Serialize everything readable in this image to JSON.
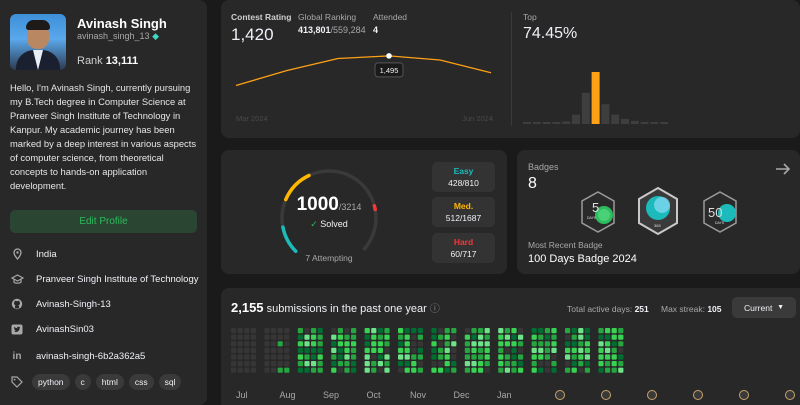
{
  "profile": {
    "name": "Avinash Singh",
    "username": "avinash_singh_13",
    "rank_label": "Rank",
    "rank_value": "13,111",
    "bio": "Hello, I'm Avinash Singh, currently pursuing my B.Tech degree in Computer Science at Pranveer Singh Institute of Technology in Kanpur. My academic journey has been marked by a deep interest in various aspects of computer science, from theoretical concepts to hands-on application development.",
    "edit_label": "Edit Profile",
    "location": "India",
    "school": "Pranveer Singh Institute of Technology",
    "github": "Avinash-Singh-13",
    "twitter": "AvinashSin03",
    "linkedin": "avinash-singh-6b2a362a5",
    "skills": [
      "python",
      "c",
      "html",
      "css",
      "sql"
    ],
    "icons": [
      "location-icon",
      "school-icon",
      "github-icon",
      "twitter-icon",
      "linkedin-icon",
      "tag-icon"
    ]
  },
  "contest": {
    "rating_label": "Contest Rating",
    "rating_value": "1,420",
    "global_label": "Global Ranking",
    "global_value": "413,801",
    "global_total": "/559,284",
    "attended_label": "Attended",
    "attended_value": "4",
    "tooltip_value": "1,495",
    "x_start": "Mar 2024",
    "x_end": "Jun 2024",
    "top_label": "Top",
    "top_value": "74.45%",
    "rating_points": [
      1100,
      1300,
      1460,
      1495,
      1440,
      1270
    ],
    "histogram": [
      2,
      2,
      3,
      3,
      5,
      18,
      60,
      100,
      38,
      18,
      10,
      6,
      4,
      3,
      2
    ],
    "histogram_highlight": 7,
    "accent": "#ffa116"
  },
  "solved": {
    "solved_value": "1000",
    "solved_total": "/3214",
    "solved_label": "Solved",
    "attempting_label": "7 Attempting",
    "easy_label": "Easy",
    "easy_value": "428/810",
    "easy_fraction": 0.528,
    "medium_label": "Med.",
    "medium_value": "512/1687",
    "medium_fraction": 0.303,
    "hard_label": "Hard",
    "hard_value": "60/717",
    "hard_fraction": 0.084,
    "easy_color": "#1cbaba",
    "medium_color": "#ffb700",
    "hard_color": "#f63737"
  },
  "badges": {
    "label": "Badges",
    "count": "8",
    "recent_label": "Most Recent Badge",
    "recent_name": "100 Days Badge 2024",
    "badge_texts": [
      "5",
      "DAYS",
      "365",
      "50",
      "DAYS"
    ]
  },
  "submissions": {
    "count": "2,155",
    "label": "submissions in the past one year",
    "active_label": "Total active days:",
    "active_value": "251",
    "streak_label": "Max streak:",
    "streak_value": "105",
    "dropdown_value": "Current",
    "months": [
      "Jul",
      "Aug",
      "Sep",
      "Oct",
      "Nov",
      "Dec",
      "Jan"
    ]
  }
}
